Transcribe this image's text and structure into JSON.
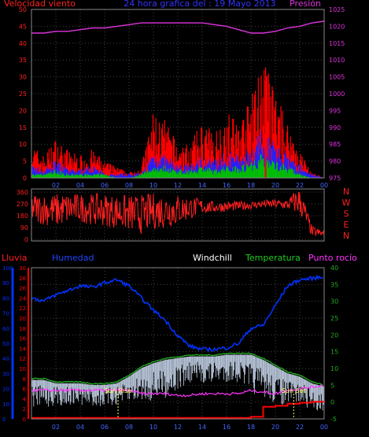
{
  "colors": {
    "bg": "#000000",
    "grid": "#444444",
    "frame": "#888888",
    "wind": "#ff2020",
    "gust_red": "#ff0000",
    "wind_blue": "#2020ff",
    "wind_green": "#00c000",
    "pressure": "#dd33dd",
    "rain": "#ff0000",
    "humidity": "#0033ff",
    "windchill": "#d8e8ff",
    "temperature": "#22aa22",
    "dewpoint": "#ff33ff",
    "sun": "#ffff55",
    "x_ticks": "#4466ff"
  },
  "time_ticks": [
    "02",
    "04",
    "06",
    "08",
    "10",
    "12",
    "14",
    "16",
    "18",
    "20",
    "22",
    "00"
  ],
  "chart_data": [
    {
      "type": "line",
      "panel": "wind-pressure",
      "title": "24 hora grafica del : 19 Mayo 2013",
      "left_label": "Velocidad viento",
      "right_label": "Presión",
      "ylim_left": [
        0,
        50
      ],
      "yticks_left": [
        0,
        5,
        10,
        15,
        20,
        25,
        30,
        35,
        40,
        45,
        50
      ],
      "ylim_right": [
        975,
        1025
      ],
      "yticks_right": [
        975,
        980,
        985,
        990,
        995,
        1000,
        1005,
        1010,
        1015,
        1020,
        1025
      ],
      "x_hours": [
        0,
        1,
        2,
        3,
        4,
        5,
        6,
        7,
        8,
        9,
        10,
        11,
        12,
        13,
        14,
        15,
        16,
        17,
        18,
        19,
        20,
        21,
        22,
        23,
        24
      ],
      "series": [
        {
          "key": "gust",
          "values": [
            6,
            4,
            7,
            5,
            4,
            5,
            3,
            2,
            1,
            2,
            12,
            10,
            6,
            6,
            10,
            8,
            12,
            10,
            14,
            22,
            15,
            10,
            5,
            1,
            0
          ]
        },
        {
          "key": "speed",
          "values": [
            3,
            2,
            4,
            2,
            2,
            3,
            1,
            1,
            1,
            1,
            6,
            5,
            3,
            3,
            5,
            4,
            6,
            5,
            7,
            11,
            8,
            5,
            3,
            1,
            0
          ]
        },
        {
          "key": "average",
          "values": [
            1,
            1,
            2,
            1,
            1,
            1,
            1,
            0,
            0,
            1,
            3,
            3,
            2,
            2,
            3,
            2,
            3,
            3,
            4,
            6,
            4,
            3,
            1,
            0,
            0
          ]
        },
        {
          "key": "pressure",
          "values": [
            1018,
            1018,
            1018.5,
            1018.5,
            1019,
            1019.5,
            1019.5,
            1020,
            1020.5,
            1021,
            1021,
            1021,
            1021,
            1021,
            1021,
            1020.5,
            1020,
            1019,
            1018,
            1018,
            1018.5,
            1019.5,
            1020,
            1021,
            1021.5
          ]
        }
      ]
    },
    {
      "type": "scatter",
      "panel": "wind-direction",
      "ylim": [
        0,
        360
      ],
      "yticks": [
        0,
        90,
        180,
        270,
        360
      ],
      "compass": [
        "N",
        "W",
        "S",
        "E",
        "N"
      ],
      "x_hours": [
        0,
        1,
        2,
        3,
        4,
        5,
        6,
        7,
        8,
        9,
        10,
        11,
        12,
        13,
        14,
        15,
        16,
        17,
        18,
        19,
        20,
        21,
        22,
        23,
        24
      ],
      "series": [
        {
          "key": "direction_center",
          "values": [
            240,
            230,
            220,
            235,
            240,
            230,
            225,
            210,
            200,
            190,
            215,
            220,
            225,
            240,
            250,
            245,
            250,
            255,
            260,
            270,
            270,
            265,
            300,
            60,
            40
          ]
        },
        {
          "key": "direction_spread",
          "values": [
            110,
            120,
            130,
            120,
            110,
            120,
            125,
            130,
            140,
            150,
            140,
            135,
            120,
            90,
            60,
            40,
            40,
            35,
            30,
            30,
            35,
            40,
            120,
            40,
            30
          ]
        }
      ]
    },
    {
      "type": "line",
      "panel": "temperature",
      "labels": {
        "rain": "Lluvia",
        "humidity": "Humedad",
        "windchill": "Windchill",
        "temperature": "Temperatura",
        "dewpoint": "Punto rocío"
      },
      "rain_ticks": [
        0,
        2,
        4,
        6,
        8,
        10,
        12,
        14,
        16,
        18,
        20,
        22,
        24,
        26,
        28,
        30
      ],
      "humidity_ticks": [
        0,
        10,
        20,
        30,
        40,
        50,
        60,
        70,
        80,
        90,
        100
      ],
      "temp_ticks": [
        -5,
        0,
        5,
        10,
        15,
        20,
        25,
        30,
        35,
        40
      ],
      "ylim_temp": [
        -5,
        40
      ],
      "ylim_humidity": [
        0,
        100
      ],
      "ylim_rain": [
        0,
        30
      ],
      "x_hours": [
        0,
        1,
        2,
        3,
        4,
        5,
        6,
        7,
        8,
        9,
        10,
        11,
        12,
        13,
        14,
        15,
        16,
        17,
        18,
        19,
        20,
        21,
        22,
        23,
        24
      ],
      "series": [
        {
          "key": "humidity",
          "values": [
            80,
            78,
            82,
            85,
            88,
            87,
            90,
            92,
            88,
            80,
            72,
            65,
            55,
            48,
            46,
            46,
            47,
            50,
            60,
            62,
            75,
            88,
            92,
            93,
            94
          ]
        },
        {
          "key": "temperature",
          "values": [
            7,
            7,
            6,
            6,
            6,
            5.5,
            5.5,
            6,
            8,
            10.5,
            12,
            13,
            13.5,
            14,
            14,
            14,
            14.5,
            14.5,
            14.5,
            13,
            11,
            9,
            8,
            6,
            5
          ]
        },
        {
          "key": "windchill",
          "values": [
            5,
            5,
            4.5,
            4.5,
            4.5,
            4,
            4,
            4.5,
            6,
            8,
            9,
            10,
            11,
            12,
            12,
            12,
            12.5,
            12.5,
            11.5,
            10,
            8,
            6.5,
            6,
            4,
            3
          ]
        },
        {
          "key": "dewpoint",
          "values": [
            3.5,
            3.5,
            3.5,
            3.5,
            3.5,
            3.5,
            3.5,
            3.5,
            3.5,
            2.5,
            2.5,
            2.5,
            2,
            2,
            2.5,
            2.5,
            2.5,
            2.5,
            3.5,
            3,
            2.5,
            3.5,
            4,
            4.5,
            5
          ]
        },
        {
          "key": "rain",
          "values": [
            0.2,
            0.2,
            0.2,
            0.2,
            0.2,
            0.2,
            0.2,
            0.2,
            0.2,
            0.2,
            0.2,
            0.2,
            0.2,
            0.2,
            0.2,
            0.2,
            0.2,
            0.2,
            0.4,
            2.4,
            2.6,
            3.0,
            3.2,
            3.4,
            3.6
          ]
        }
      ],
      "sun_rise": {
        "label": "Sun Rise",
        "hour": 7.1
      },
      "sun_set": {
        "label": "Sun Set",
        "hour": 21.5
      }
    }
  ]
}
